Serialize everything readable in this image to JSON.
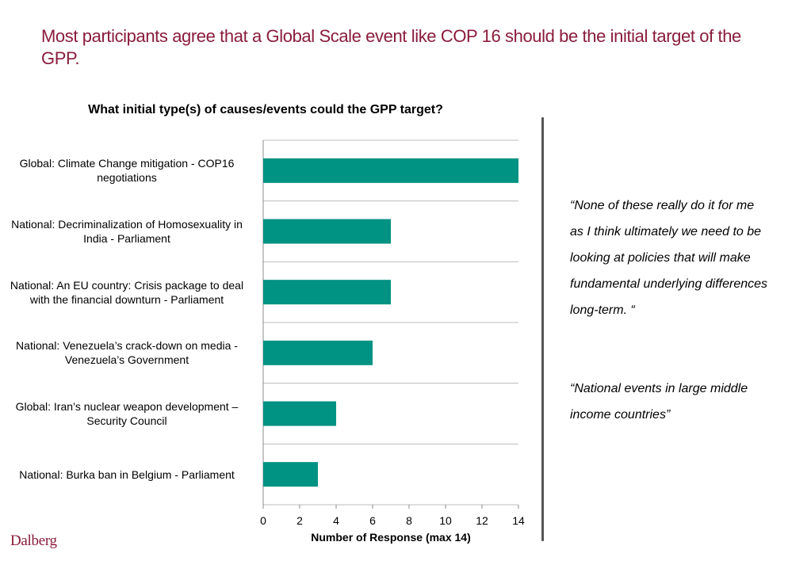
{
  "slide": {
    "title": "Most participants agree that a Global Scale event  like COP 16 should be the initial target of the GPP."
  },
  "chart_data": {
    "type": "bar",
    "orientation": "horizontal",
    "title": "What initial type(s) of causes/events could the GPP target?",
    "xlabel": "Number of Response (max 14)",
    "ylabel": "",
    "categories": [
      "Global: Climate Change mitigation  - COP16 negotiations",
      "National: Decriminalization of  Homosexuality in India - Parliament",
      "National: An EU country: Crisis package to deal with the financial downturn - Parliament",
      "National: Venezuela’s crack-down on media - Venezuela’s Government",
      "Global: Iran’s nuclear weapon development – Security Council",
      "National: Burka ban in Belgium - Parliament"
    ],
    "values": [
      14,
      7,
      7,
      6,
      4,
      3
    ],
    "xlim": [
      0,
      14
    ],
    "xticks": [
      "0",
      "2",
      "4",
      "6",
      "8",
      "10",
      "12",
      "14"
    ],
    "grid": "horizontal",
    "bar_color": "#009282"
  },
  "quotes": [
    "“None of these really do it for me as I think ultimately we need to be looking at policies that will make fundamental underlying differences long-term. “",
    "“National events in large middle income countries”"
  ],
  "logo_text": "Dalberg",
  "colors": {
    "title": "#8a1c3c",
    "bar": "#009282",
    "logo": "#8a1c3c"
  }
}
